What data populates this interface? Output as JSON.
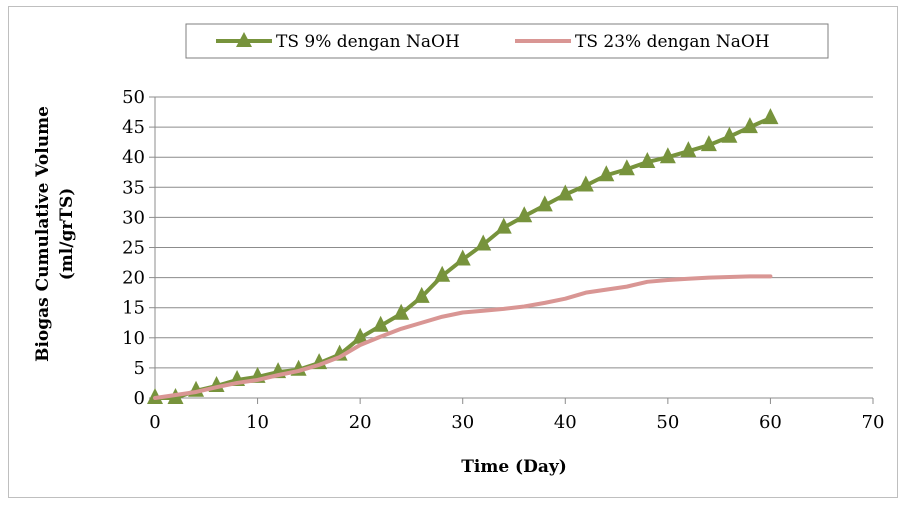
{
  "chart_data": {
    "type": "line",
    "title": "",
    "xlabel": "Time (Day)",
    "ylabel_line1": "Biogas Cumulative Volume",
    "ylabel_line2": "(ml/grTS)",
    "xlim": [
      0,
      70
    ],
    "ylim": [
      0,
      50
    ],
    "xticks": [
      0,
      10,
      20,
      30,
      40,
      50,
      60,
      70
    ],
    "yticks": [
      0,
      5,
      10,
      15,
      20,
      25,
      30,
      35,
      40,
      45,
      50
    ],
    "grid": "horizontal",
    "legend_position": "top-center",
    "series": [
      {
        "name": "TS 9% dengan NaOH",
        "color": "#77933C",
        "marker": "triangle",
        "x": [
          0,
          2,
          4,
          6,
          8,
          10,
          12,
          14,
          16,
          18,
          20,
          22,
          24,
          26,
          28,
          30,
          32,
          34,
          36,
          38,
          40,
          42,
          44,
          46,
          48,
          50,
          52,
          54,
          56,
          58,
          60
        ],
        "y": [
          0,
          0,
          1.2,
          2,
          3,
          3.5,
          4.3,
          4.7,
          5.8,
          7.2,
          10,
          12,
          14,
          16.8,
          20.3,
          23,
          25.5,
          28.3,
          30.2,
          32,
          33.8,
          35.3,
          37,
          38,
          39.2,
          40,
          41,
          42,
          43.4,
          45,
          46.5
        ]
      },
      {
        "name": "TS 23% dengan NaOH",
        "color": "#D99694",
        "marker": "none",
        "x": [
          0,
          2,
          4,
          6,
          8,
          10,
          12,
          14,
          16,
          18,
          20,
          22,
          24,
          26,
          28,
          30,
          32,
          34,
          36,
          38,
          40,
          42,
          44,
          46,
          48,
          50,
          52,
          54,
          56,
          58,
          60
        ],
        "y": [
          0,
          0.5,
          1,
          1.8,
          2.5,
          3,
          3.8,
          4.5,
          5.5,
          6.8,
          8.8,
          10.2,
          11.5,
          12.5,
          13.5,
          14.2,
          14.5,
          14.8,
          15.2,
          15.8,
          16.5,
          17.5,
          18,
          18.5,
          19.3,
          19.6,
          19.8,
          20,
          20.1,
          20.2,
          20.2
        ]
      }
    ]
  }
}
